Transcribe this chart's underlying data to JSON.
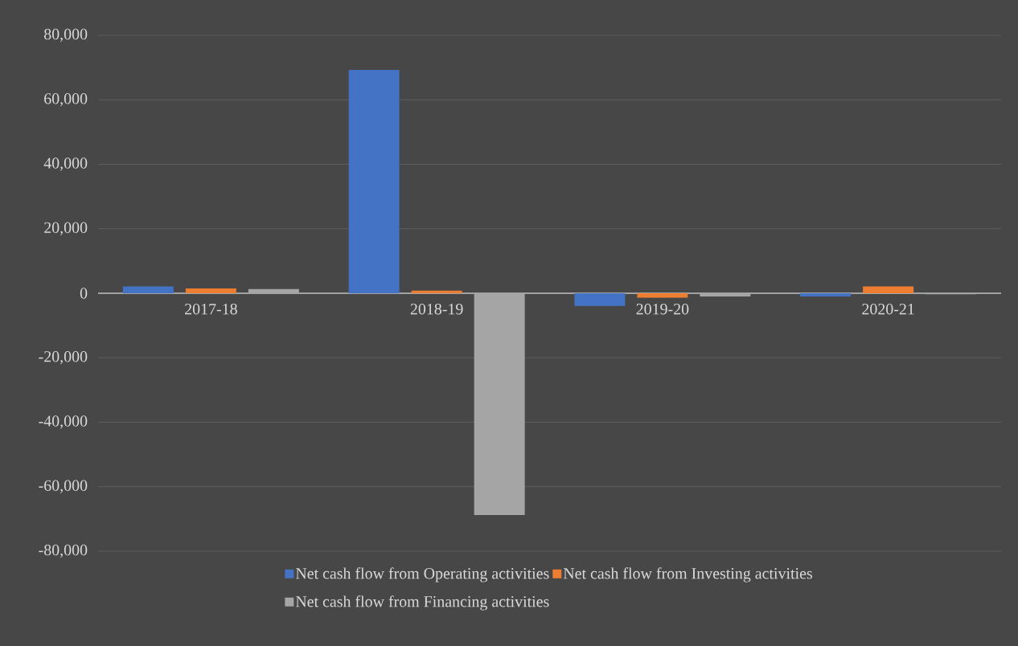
{
  "chart_data": {
    "type": "bar",
    "categories": [
      "2017-18",
      "2018-19",
      "2019-20",
      "2020-21"
    ],
    "series": [
      {
        "name": "Net cash flow from Operating activities",
        "color": "#4472c4",
        "values": [
          2100,
          69300,
          -3900,
          -1000
        ]
      },
      {
        "name": "Net cash flow from Investing activities",
        "color": "#ed7d31",
        "values": [
          1500,
          800,
          -1400,
          2100
        ]
      },
      {
        "name": "Net cash flow from Financing activities",
        "color": "#a5a5a5",
        "values": [
          1300,
          -68800,
          -1000,
          -300
        ]
      }
    ],
    "ylim": [
      -80000,
      80000
    ],
    "yticks": [
      {
        "value": -80000,
        "label": "-80,000"
      },
      {
        "value": -60000,
        "label": "-60,000"
      },
      {
        "value": -40000,
        "label": "-40,000"
      },
      {
        "value": -20000,
        "label": "-20,000"
      },
      0,
      {
        "value": 20000,
        "label": "20,000"
      },
      {
        "value": 40000,
        "label": "40,000"
      },
      {
        "value": 60000,
        "label": "60,000"
      },
      {
        "value": 80000,
        "label": "80,000"
      }
    ],
    "grid": true,
    "legend": "bottom"
  }
}
